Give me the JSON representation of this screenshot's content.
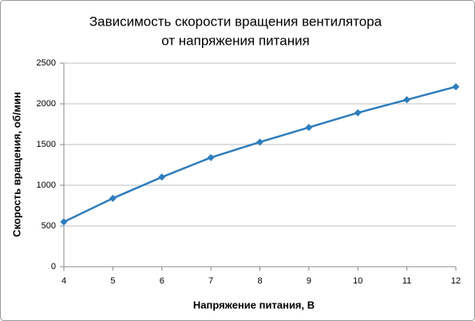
{
  "chart_data": {
    "type": "line",
    "title": [
      "Зависимость скорости вращения вентилятора",
      "от напряжения питания"
    ],
    "x_label": "Напряжение питания, В",
    "y_label": "Скорость вращения, об/мин",
    "x": [
      4,
      5,
      6,
      7,
      8,
      9,
      10,
      11,
      12
    ],
    "values": [
      550,
      840,
      1100,
      1340,
      1530,
      1710,
      1890,
      2050,
      2210
    ],
    "color": "#2e7dbd",
    "xlim": [
      4,
      12
    ],
    "xticks": [
      4,
      5,
      6,
      7,
      8,
      9,
      10,
      11,
      12
    ],
    "ylim": [
      0,
      2500
    ],
    "yticks": [
      0,
      500,
      1000,
      1500,
      2000,
      2500
    ],
    "grid": true
  }
}
